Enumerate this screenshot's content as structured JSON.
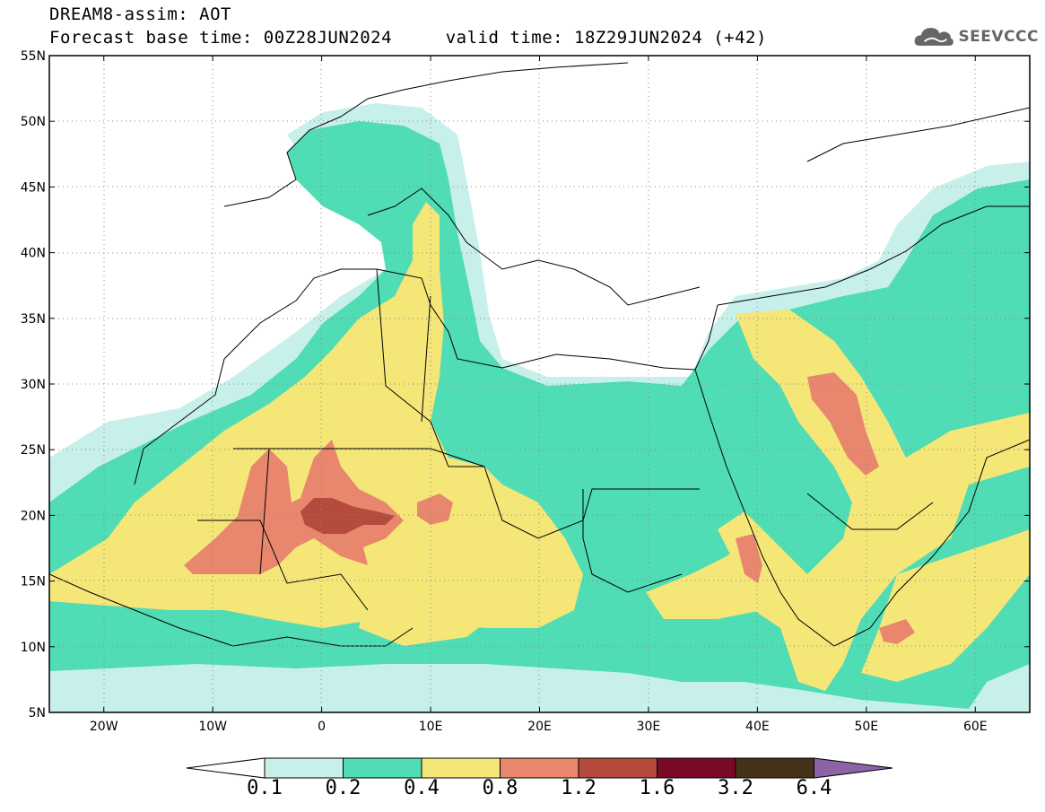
{
  "title_line1": "DREAM8-assim: AOT",
  "title_line2": "Forecast base time: 00Z28JUN2024     valid time: 18Z29JUN2024 (+42)",
  "logo": {
    "text": "SEEVCCC",
    "icon": "cloud-icon"
  },
  "map": {
    "lon_range": [
      -25,
      65
    ],
    "lat_range": [
      5,
      55
    ],
    "x_ticks": [
      "20W",
      "10W",
      "0",
      "10E",
      "20E",
      "30E",
      "40E",
      "50E",
      "60E"
    ],
    "y_ticks": [
      "5N",
      "10N",
      "15N",
      "20N",
      "25N",
      "30N",
      "35N",
      "40N",
      "45N",
      "50N",
      "55N"
    ],
    "grid": "dotted"
  },
  "colorbar": {
    "labels": [
      "0.1",
      "0.2",
      "0.4",
      "0.8",
      "1.2",
      "1.6",
      "3.2",
      "6.4"
    ],
    "colors": [
      "#c8f0ea",
      "#50dcb4",
      "#f5e678",
      "#e8876e",
      "#b44b3c",
      "#780a28",
      "#463219",
      "#8c64a5"
    ]
  }
}
